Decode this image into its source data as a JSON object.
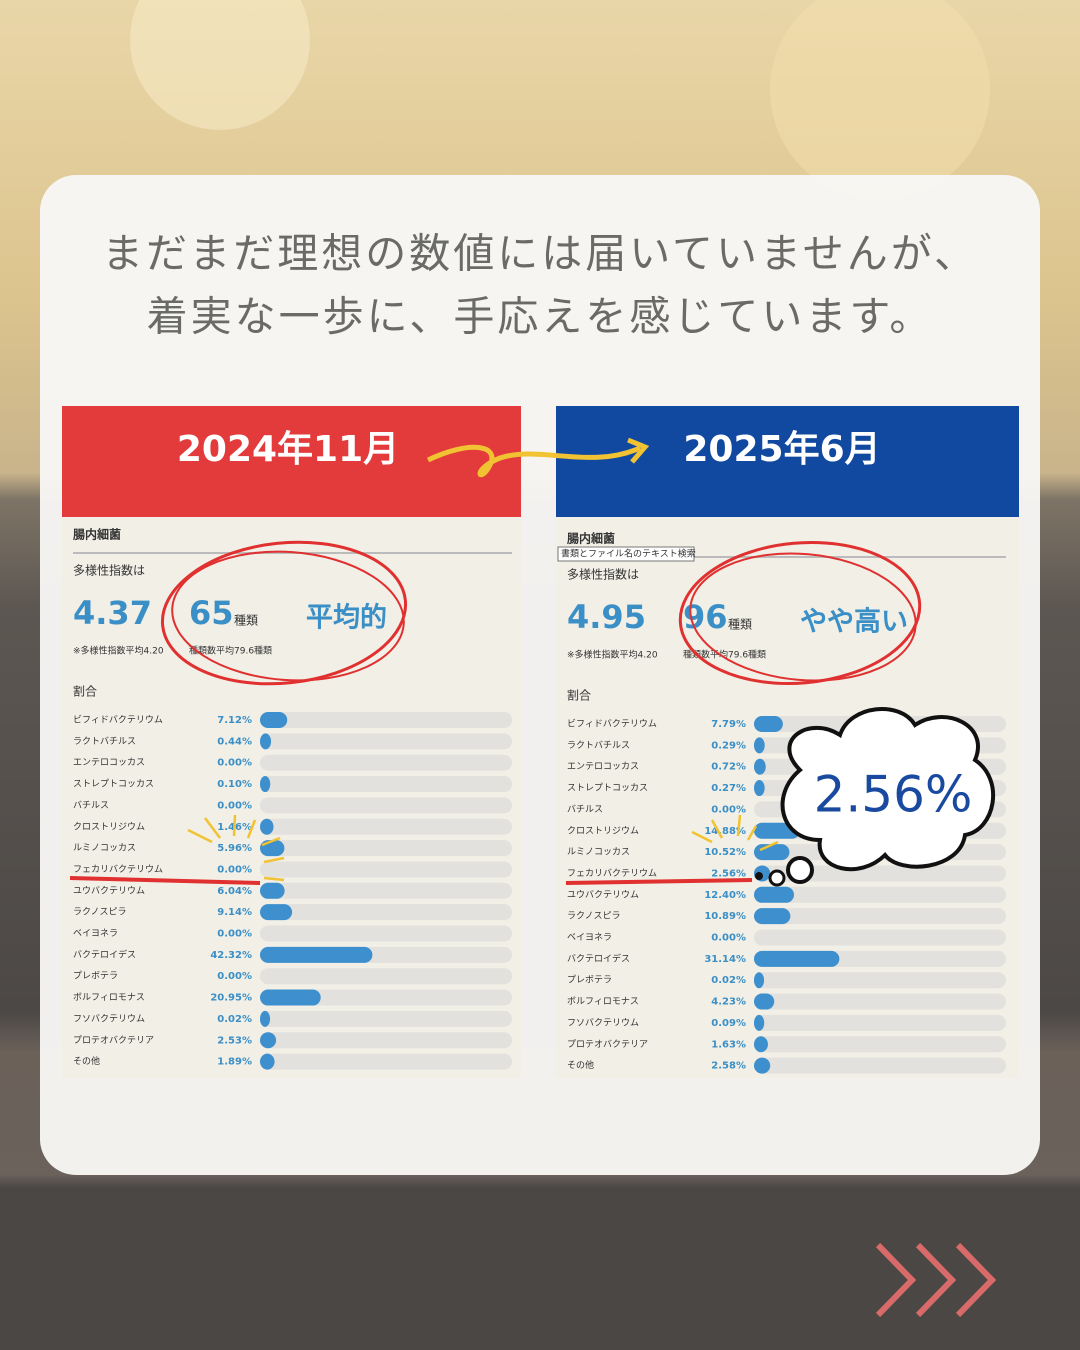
{
  "header": {
    "lines": [
      "まだまだ理想の数値には届いていませんが、",
      "着実な一歩に、手応えを感じています。"
    ]
  },
  "panels": [
    {
      "date": "2024年11月",
      "section": "腸内細菌",
      "index_label": "多様性指数は",
      "index": 4.37,
      "index_note": "※多様性指数平均4.20",
      "species": 65,
      "species_unit": "種類",
      "species_note": "種類数平均79.6種類",
      "rating": "平均的",
      "ratio_label": "割合",
      "xlim": [
        0,
        100
      ],
      "rows": [
        {
          "name": "ビフィドバクテリウム",
          "value": 7.12,
          "label": "7.12%"
        },
        {
          "name": "ラクトバチルス",
          "value": 0.44,
          "label": "0.44%"
        },
        {
          "name": "エンテロコッカス",
          "value": 0.0,
          "label": "0.00%"
        },
        {
          "name": "ストレプトコッカス",
          "value": 0.1,
          "label": "0.10%"
        },
        {
          "name": "バチルス",
          "value": 0.0,
          "label": "0.00%"
        },
        {
          "name": "クロストリジウム",
          "value": 1.46,
          "label": "1.46%"
        },
        {
          "name": "ルミノコッカス",
          "value": 5.96,
          "label": "5.96%"
        },
        {
          "name": "フェカリバクテリウム",
          "value": 0.0,
          "label": "0.00%"
        },
        {
          "name": "ユウバクテリウム",
          "value": 6.04,
          "label": "6.04%"
        },
        {
          "name": "ラクノスピラ",
          "value": 9.14,
          "label": "9.14%"
        },
        {
          "name": "ベイヨネラ",
          "value": 0.0,
          "label": "0.00%"
        },
        {
          "name": "バクテロイデス",
          "value": 42.32,
          "label": "42.32%"
        },
        {
          "name": "プレボテラ",
          "value": 0.0,
          "label": "0.00%"
        },
        {
          "name": "ボルフィロモナス",
          "value": 20.95,
          "label": "20.95%"
        },
        {
          "name": "フソバクテリウム",
          "value": 0.02,
          "label": "0.02%"
        },
        {
          "name": "プロテオバクテリア",
          "value": 2.53,
          "label": "2.53%"
        },
        {
          "name": "その他",
          "value": 1.89,
          "label": "1.89%"
        }
      ]
    },
    {
      "date": "2025年6月",
      "section": "腸内細菌",
      "tooltip": "書類とファイル名のテキスト検索",
      "index_label": "多様性指数は",
      "index": 4.95,
      "index_note": "※多様性指数平均4.20",
      "species": 96,
      "species_unit": "種類",
      "species_note": "種類数平均79.6種類",
      "rating": "やや高い",
      "ratio_label": "割合",
      "xlim": [
        0,
        100
      ],
      "rows": [
        {
          "name": "ビフィドバクテリウム",
          "value": 7.79,
          "label": "7.79%"
        },
        {
          "name": "ラクトバチルス",
          "value": 0.29,
          "label": "0.29%"
        },
        {
          "name": "エンテロコッカス",
          "value": 0.72,
          "label": "0.72%"
        },
        {
          "name": "ストレプトコッカス",
          "value": 0.27,
          "label": "0.27%"
        },
        {
          "name": "バチルス",
          "value": 0.0,
          "label": "0.00%"
        },
        {
          "name": "クロストリジウム",
          "value": 14.88,
          "label": "14.88%"
        },
        {
          "name": "ルミノコッカス",
          "value": 10.52,
          "label": "10.52%"
        },
        {
          "name": "フェカリバクテリウム",
          "value": 2.56,
          "label": "2.56%"
        },
        {
          "name": "ユウバクテリウム",
          "value": 12.4,
          "label": "12.40%"
        },
        {
          "name": "ラクノスピラ",
          "value": 10.89,
          "label": "10.89%"
        },
        {
          "name": "ベイヨネラ",
          "value": 0.0,
          "label": "0.00%"
        },
        {
          "name": "バクテロイデス",
          "value": 31.14,
          "label": "31.14%"
        },
        {
          "name": "プレボテラ",
          "value": 0.02,
          "label": "0.02%"
        },
        {
          "name": "ボルフィロモナス",
          "value": 4.23,
          "label": "4.23%"
        },
        {
          "name": "フソバクテリウム",
          "value": 0.09,
          "label": "0.09%"
        },
        {
          "name": "プロテオバクテリア",
          "value": 1.63,
          "label": "1.63%"
        },
        {
          "name": "その他",
          "value": 2.58,
          "label": "2.58%"
        }
      ]
    }
  ],
  "callout": "2.56%"
}
